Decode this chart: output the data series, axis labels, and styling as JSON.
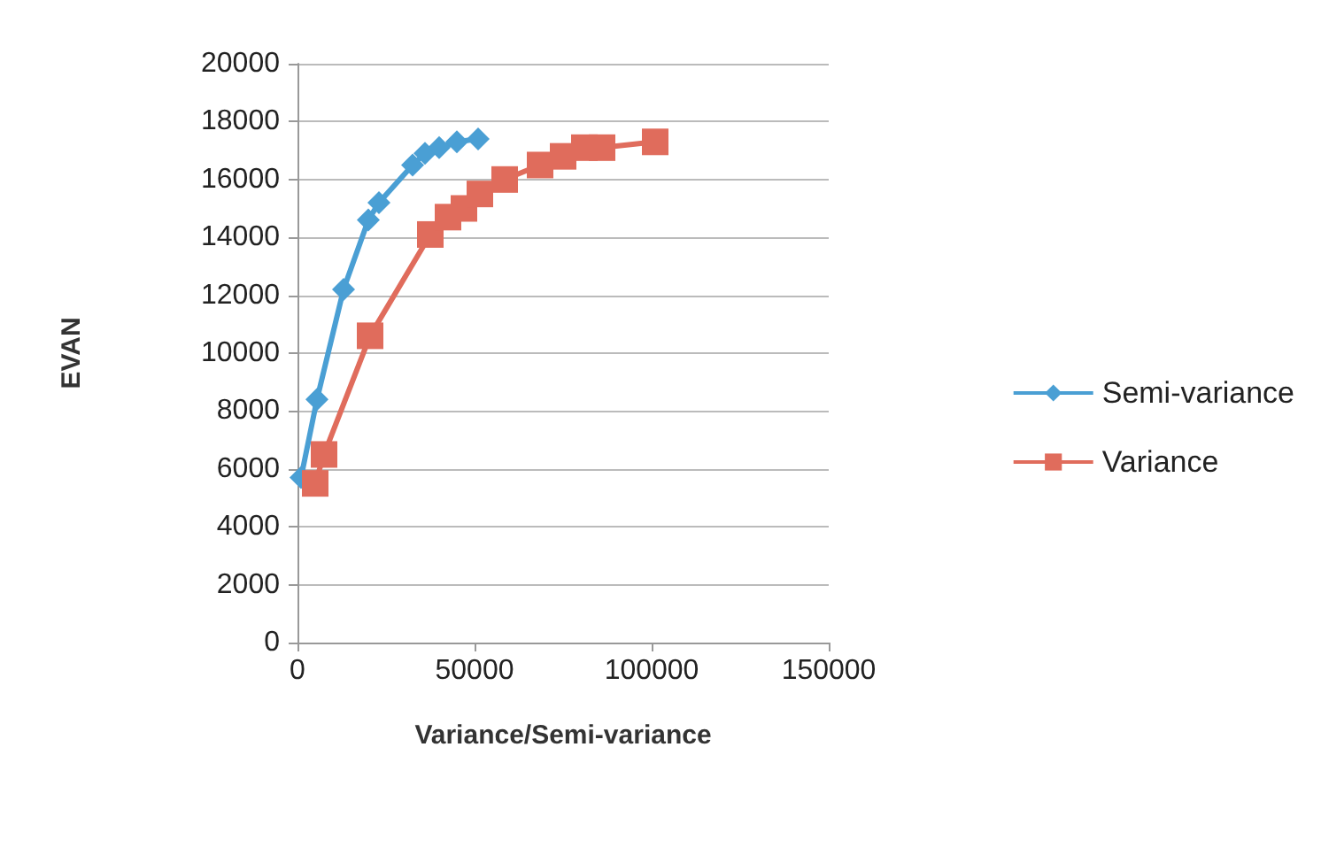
{
  "chart_data": {
    "type": "line",
    "xlabel": "Variance/Semi-variance",
    "ylabel": "EVAN",
    "xlim": [
      0,
      150000
    ],
    "xticks": [
      0,
      50000,
      100000,
      150000
    ],
    "ylim": [
      0,
      20000
    ],
    "yticks": [
      0,
      2000,
      4000,
      6000,
      8000,
      10000,
      12000,
      14000,
      16000,
      18000,
      20000
    ],
    "grid": "y",
    "legend": "right",
    "series": [
      {
        "name": "Semi-variance",
        "color": "#4a9fd4",
        "marker": "diamond",
        "x": [
          1000,
          5500,
          13000,
          20000,
          23000,
          32500,
          36000,
          40000,
          45000,
          51000
        ],
        "values": [
          5700,
          8400,
          12200,
          14600,
          15200,
          16500,
          16900,
          17100,
          17300,
          17400
        ]
      },
      {
        "name": "Variance",
        "color": "#e06c5c",
        "marker": "square",
        "x": [
          5000,
          7500,
          20500,
          37500,
          42500,
          47000,
          51500,
          58500,
          68500,
          75000,
          81000,
          86000,
          101000
        ],
        "values": [
          5500,
          6500,
          10600,
          14100,
          14700,
          15000,
          15500,
          16000,
          16500,
          16800,
          17100,
          17100,
          17300
        ]
      }
    ]
  }
}
